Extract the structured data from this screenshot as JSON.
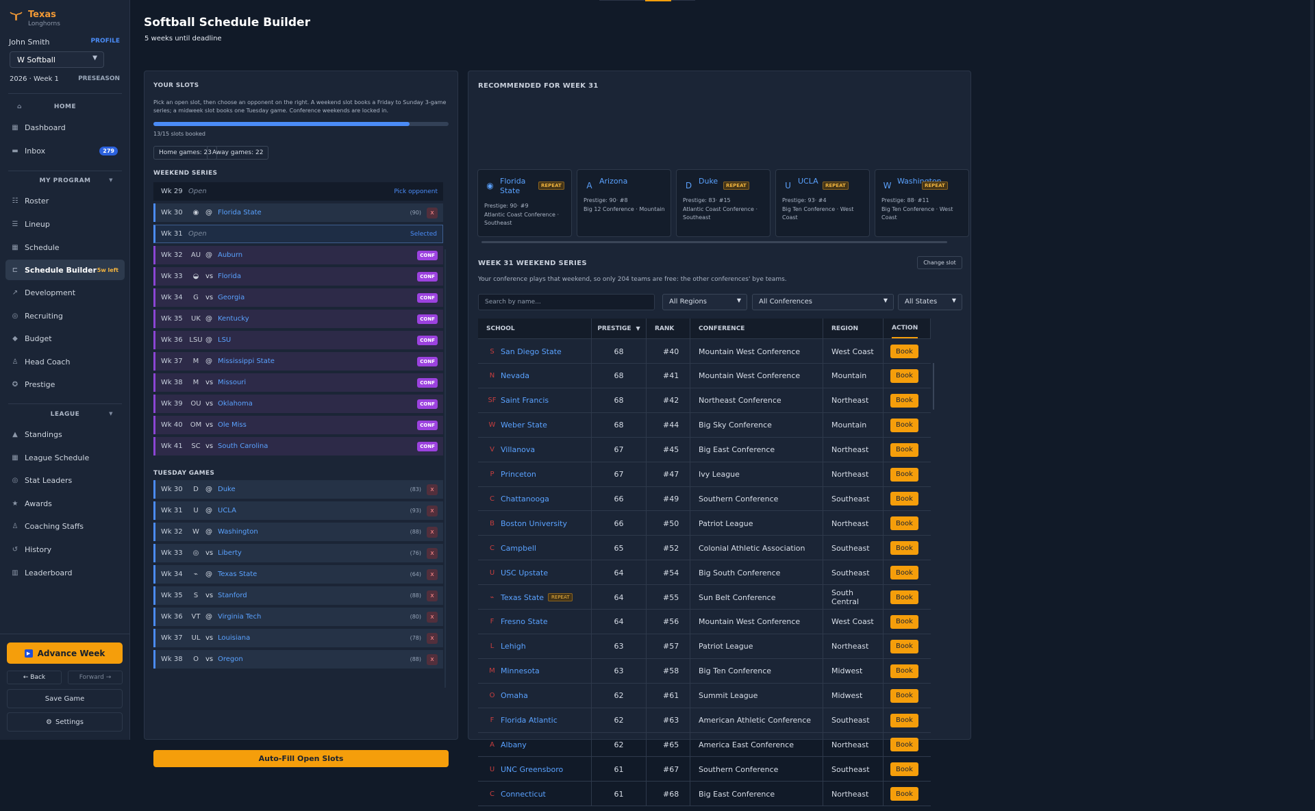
{
  "sidebar": {
    "brand": {
      "name": "Texas",
      "subtitle": "Longhorns"
    },
    "user": {
      "name": "John Smith",
      "profile": "PROFILE"
    },
    "sport": {
      "selected": "W Softball"
    },
    "season": {
      "current": "2026 · Week 1",
      "phase": "PRESEASON"
    },
    "home": {
      "title": "HOME",
      "items": [
        {
          "label": "Dashboard",
          "icon": "grid-icon"
        },
        {
          "label": "Inbox",
          "icon": "inbox-icon",
          "badge": "279"
        }
      ]
    },
    "program": {
      "title": "MY PROGRAM",
      "items": [
        {
          "label": "Roster",
          "icon": "list-icon"
        },
        {
          "label": "Lineup",
          "icon": "lineup-icon"
        },
        {
          "label": "Schedule",
          "icon": "calendar-icon"
        },
        {
          "label": "Schedule Builder",
          "icon": "builder-icon",
          "note": "5w left"
        },
        {
          "label": "Development",
          "icon": "trend-icon"
        },
        {
          "label": "Recruiting",
          "icon": "target-icon"
        },
        {
          "label": "Budget",
          "icon": "diamond-icon"
        },
        {
          "label": "Head Coach",
          "icon": "person-icon"
        },
        {
          "label": "Prestige",
          "icon": "star-circle-icon"
        }
      ]
    },
    "league": {
      "title": "LEAGUE",
      "items": [
        {
          "label": "Standings",
          "icon": "triangle-icon"
        },
        {
          "label": "League Schedule",
          "icon": "calendar-icon"
        },
        {
          "label": "Stat Leaders",
          "icon": "target-icon"
        },
        {
          "label": "Awards",
          "icon": "star-icon"
        },
        {
          "label": "Coaching Staffs",
          "icon": "person-icon"
        },
        {
          "label": "History",
          "icon": "history-icon"
        },
        {
          "label": "Leaderboard",
          "icon": "bar-icon"
        }
      ]
    },
    "advance": "Advance Week",
    "back": "Back",
    "forward": "Forward",
    "save": "Save Game",
    "settings": "Settings"
  },
  "page": {
    "title": "Softball Schedule Builder",
    "subtitle": "5 weeks until deadline"
  },
  "slots": {
    "title": "YOUR SLOTS",
    "description": "Pick an open slot, then choose an opponent on the right. A weekend slot books a Friday to Sunday 3-game series; a midweek slot books one Tuesday game. Conference weekends are locked in.",
    "progress": {
      "value": 0.8667,
      "text": "13/15 slots booked"
    },
    "home_games": "Home games: 23",
    "away_games": "Away games: 22",
    "weekend_title": "WEEKEND SERIES",
    "tuesday_title": "TUESDAY GAMES",
    "weekend": [
      {
        "week": "Wk 29",
        "status": "Open",
        "action": "Pick opponent",
        "type": "open"
      },
      {
        "week": "Wk 30",
        "ha": "@",
        "team": "Florida State",
        "rank": "(90)",
        "logo": "seminole-icon",
        "type": "booked"
      },
      {
        "week": "Wk 31",
        "status": "Open",
        "action": "Selected",
        "type": "selected"
      },
      {
        "week": "Wk 32",
        "ha": "@",
        "team": "Auburn",
        "badge": "CONF",
        "logo": "auburn-icon",
        "type": "conf"
      },
      {
        "week": "Wk 33",
        "ha": "vs",
        "team": "Florida",
        "badge": "CONF",
        "logo": "gator-icon",
        "type": "conf"
      },
      {
        "week": "Wk 34",
        "ha": "vs",
        "team": "Georgia",
        "badge": "CONF",
        "logo": "georgia-icon",
        "type": "conf"
      },
      {
        "week": "Wk 35",
        "ha": "@",
        "team": "Kentucky",
        "badge": "CONF",
        "logo": "kentucky-icon",
        "type": "conf"
      },
      {
        "week": "Wk 36",
        "ha": "@",
        "team": "LSU",
        "badge": "CONF",
        "logo": "lsu-icon",
        "type": "conf"
      },
      {
        "week": "Wk 37",
        "ha": "@",
        "team": "Mississippi State",
        "badge": "CONF",
        "logo": "mississippi-state-icon",
        "type": "conf"
      },
      {
        "week": "Wk 38",
        "ha": "vs",
        "team": "Missouri",
        "badge": "CONF",
        "logo": "missouri-icon",
        "type": "conf"
      },
      {
        "week": "Wk 39",
        "ha": "vs",
        "team": "Oklahoma",
        "badge": "CONF",
        "logo": "oklahoma-icon",
        "type": "conf"
      },
      {
        "week": "Wk 40",
        "ha": "vs",
        "team": "Ole Miss",
        "badge": "CONF",
        "logo": "ole-miss-icon",
        "type": "conf"
      },
      {
        "week": "Wk 41",
        "ha": "vs",
        "team": "South Carolina",
        "badge": "CONF",
        "logo": "south-carolina-icon",
        "type": "conf"
      }
    ],
    "tuesday": [
      {
        "week": "Wk 30",
        "ha": "@",
        "team": "Duke",
        "rank": "(83)",
        "logo": "duke-icon"
      },
      {
        "week": "Wk 31",
        "ha": "@",
        "team": "UCLA",
        "rank": "(93)",
        "logo": "ucla-icon"
      },
      {
        "week": "Wk 32",
        "ha": "@",
        "team": "Washington",
        "rank": "(88)",
        "logo": "washington-icon"
      },
      {
        "week": "Wk 33",
        "ha": "vs",
        "team": "Liberty",
        "rank": "(76)",
        "logo": "liberty-icon"
      },
      {
        "week": "Wk 34",
        "ha": "@",
        "team": "Texas State",
        "rank": "(64)",
        "logo": "texas-state-icon"
      },
      {
        "week": "Wk 35",
        "ha": "vs",
        "team": "Stanford",
        "rank": "(88)",
        "logo": "stanford-icon"
      },
      {
        "week": "Wk 36",
        "ha": "@",
        "team": "Virginia Tech",
        "rank": "(80)",
        "logo": "virginia-tech-icon"
      },
      {
        "week": "Wk 37",
        "ha": "vs",
        "team": "Louisiana",
        "rank": "(78)",
        "logo": "louisiana-icon"
      },
      {
        "week": "Wk 38",
        "ha": "vs",
        "team": "Oregon",
        "rank": "(88)",
        "logo": "oregon-icon"
      }
    ],
    "autofill": "Auto-Fill Open Slots"
  },
  "recommended": {
    "title": "RECOMMENDED FOR WEEK 31",
    "cards": [
      {
        "name": "Florida State",
        "repeat": "REPEAT",
        "prestige": "Prestige: 90· #9",
        "conference": "Atlantic Coast Conference · Southeast",
        "logo": "seminole-icon"
      },
      {
        "name": "Arizona",
        "prestige": "Prestige: 90· #8",
        "conference": "Big 12 Conference · Mountain",
        "logo": "arizona-icon"
      },
      {
        "name": "Duke",
        "repeat": "REPEAT",
        "prestige": "Prestige: 83· #15",
        "conference": "Atlantic Coast Conference · Southeast",
        "logo": "duke-icon"
      },
      {
        "name": "UCLA",
        "repeat": "REPEAT",
        "prestige": "Prestige: 93· #4",
        "conference": "Big Ten Conference · West Coast",
        "logo": "ucla-icon"
      },
      {
        "name": "Washington",
        "repeat": "REPEAT",
        "prestige": "Prestige: 88· #11",
        "conference": "Big Ten Conference · West Coast",
        "logo": "washington-icon"
      }
    ]
  },
  "series": {
    "title": "WEEK 31 WEEKEND SERIES",
    "change": "Change slot",
    "description": "Your conference plays that weekend, so only 204 teams are free: the other conferences' bye teams.",
    "search_placeholder": "Search by name...",
    "filters": {
      "regions": "All Regions",
      "conferences": "All Conferences",
      "states": "All States"
    },
    "headers": {
      "school": "SCHOOL",
      "prestige": "PRESTIGE",
      "sort": "▼",
      "rank": "RANK",
      "conference": "CONFERENCE",
      "region": "REGION",
      "action": "ACTION"
    },
    "book": "Book",
    "rows": [
      {
        "school": "San Diego State",
        "prestige": "68",
        "rank": "#40",
        "conference": "Mountain West Conference",
        "region": "West Coast",
        "logo": "sdsu-icon"
      },
      {
        "school": "Nevada",
        "prestige": "68",
        "rank": "#41",
        "conference": "Mountain West Conference",
        "region": "Mountain",
        "logo": "nevada-icon"
      },
      {
        "school": "Saint Francis",
        "prestige": "68",
        "rank": "#42",
        "conference": "Northeast Conference",
        "region": "Northeast",
        "logo": "saint-francis-icon"
      },
      {
        "school": "Weber State",
        "prestige": "68",
        "rank": "#44",
        "conference": "Big Sky Conference",
        "region": "Mountain",
        "logo": "weber-icon"
      },
      {
        "school": "Villanova",
        "prestige": "67",
        "rank": "#45",
        "conference": "Big East Conference",
        "region": "Northeast",
        "logo": "villanova-icon"
      },
      {
        "school": "Princeton",
        "prestige": "67",
        "rank": "#47",
        "conference": "Ivy League",
        "region": "Northeast",
        "logo": "princeton-icon"
      },
      {
        "school": "Chattanooga",
        "prestige": "66",
        "rank": "#49",
        "conference": "Southern Conference",
        "region": "Southeast",
        "logo": "chattanooga-icon"
      },
      {
        "school": "Boston University",
        "prestige": "66",
        "rank": "#50",
        "conference": "Patriot League",
        "region": "Northeast",
        "logo": "boston-icon"
      },
      {
        "school": "Campbell",
        "prestige": "65",
        "rank": "#52",
        "conference": "Colonial Athletic Association",
        "region": "Southeast",
        "logo": "campbell-icon"
      },
      {
        "school": "USC Upstate",
        "prestige": "64",
        "rank": "#54",
        "conference": "Big South Conference",
        "region": "Southeast",
        "logo": "usc-upstate-icon"
      },
      {
        "school": "Texas State",
        "repeat": "REPEAT",
        "prestige": "64",
        "rank": "#55",
        "conference": "Sun Belt Conference",
        "region": "South Central",
        "logo": "texas-state-icon"
      },
      {
        "school": "Fresno State",
        "prestige": "64",
        "rank": "#56",
        "conference": "Mountain West Conference",
        "region": "West Coast",
        "logo": "fresno-icon"
      },
      {
        "school": "Lehigh",
        "prestige": "63",
        "rank": "#57",
        "conference": "Patriot League",
        "region": "Northeast",
        "logo": "lehigh-icon"
      },
      {
        "school": "Minnesota",
        "prestige": "63",
        "rank": "#58",
        "conference": "Big Ten Conference",
        "region": "Midwest",
        "logo": "minnesota-icon"
      },
      {
        "school": "Omaha",
        "prestige": "62",
        "rank": "#61",
        "conference": "Summit League",
        "region": "Midwest",
        "logo": "omaha-icon"
      },
      {
        "school": "Florida Atlantic",
        "prestige": "62",
        "rank": "#63",
        "conference": "American Athletic Conference",
        "region": "Southeast",
        "logo": "florida-atlantic-icon"
      },
      {
        "school": "Albany",
        "prestige": "62",
        "rank": "#65",
        "conference": "America East Conference",
        "region": "Northeast",
        "logo": "albany-icon"
      },
      {
        "school": "UNC Greensboro",
        "prestige": "61",
        "rank": "#67",
        "conference": "Southern Conference",
        "region": "Southeast",
        "logo": "unc-greensboro-icon"
      },
      {
        "school": "Connecticut",
        "prestige": "61",
        "rank": "#68",
        "conference": "Big East Conference",
        "region": "Northeast",
        "logo": "connecticut-icon"
      }
    ]
  },
  "colors": {
    "accent": "#f59e0b",
    "link": "#4b8cf7",
    "conference": "#8b45d4",
    "background": "#111a28"
  }
}
